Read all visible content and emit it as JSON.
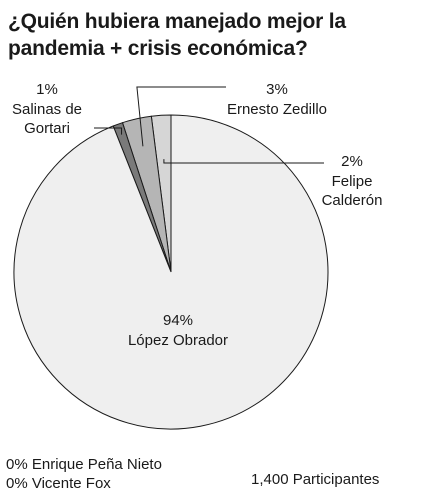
{
  "title_lines": [
    "¿Quién hubiera manejado mejor la",
    "pandemia + crisis económica?"
  ],
  "chart_data": {
    "type": "pie",
    "title": "¿Quién hubiera manejado mejor la pandemia + crisis económica?",
    "unit": "%",
    "slices": [
      {
        "name_lines": [
          "López Obrador"
        ],
        "value": 94,
        "label": "94%",
        "color": "#efefef"
      },
      {
        "name_lines": [
          "Salinas de",
          "Gortari"
        ],
        "value": 1,
        "label": "1%",
        "color": "#7a7a7a"
      },
      {
        "name_lines": [
          "Ernesto Zedillo"
        ],
        "value": 3,
        "label": "3%",
        "color": "#b5b5b5"
      },
      {
        "name_lines": [
          "Felipe",
          "Calderón"
        ],
        "value": 2,
        "label": "2%",
        "color": "#d6d6d6"
      }
    ],
    "zero_entries": [
      "0% Enrique Peña Nieto",
      "0% Vicente Fox"
    ],
    "participants": "1,400 Participantes"
  }
}
